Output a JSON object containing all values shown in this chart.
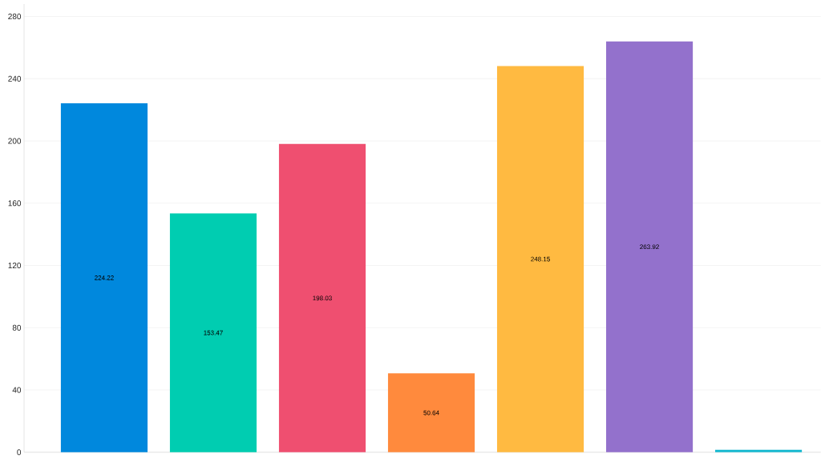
{
  "chart_data": {
    "type": "bar",
    "categories": [
      null,
      null,
      null,
      null,
      null,
      null,
      null
    ],
    "values": [
      224.22,
      153.47,
      198.03,
      50.64,
      248.15,
      263.92,
      1.5
    ],
    "colors": [
      "#0088dd",
      "#00cdb1",
      "#ef4f70",
      "#ff8a3d",
      "#ffba41",
      "#9371cc",
      "#17b9d0"
    ],
    "value_labels": [
      "224.22",
      "153.47",
      "198.03",
      "50.64",
      "248.15",
      "263.92",
      null
    ],
    "ylim": [
      0,
      288
    ],
    "yticks": [
      0,
      40,
      80,
      120,
      160,
      200,
      240,
      280
    ],
    "grid": "y"
  }
}
